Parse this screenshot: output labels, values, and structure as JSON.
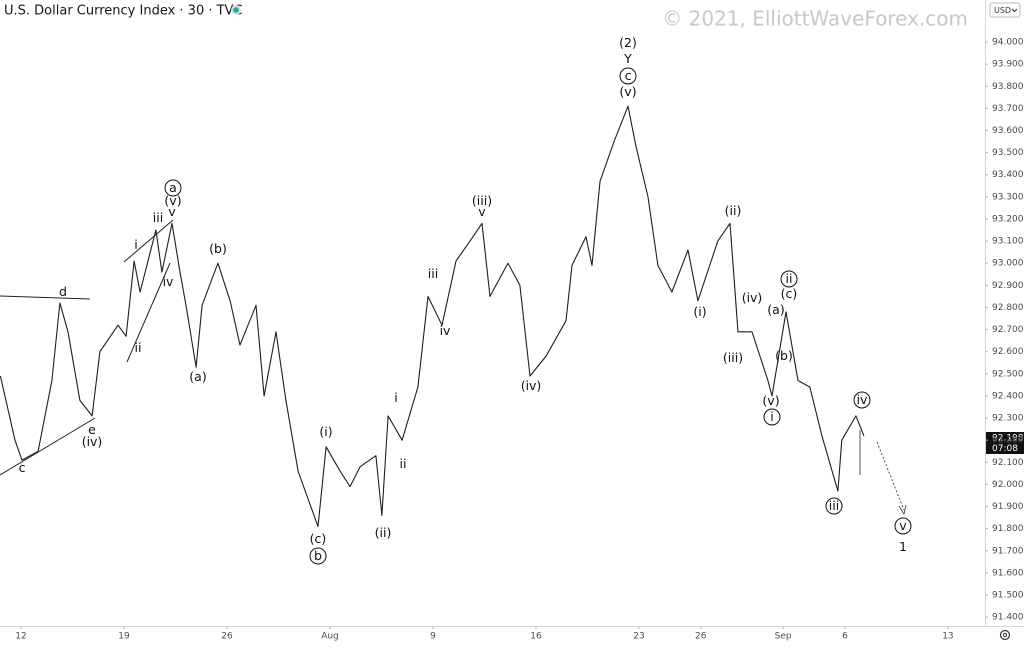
{
  "chart_data": {
    "type": "line",
    "title": "U.S. Dollar Currency Index · 30 · TVC",
    "watermark": "© 2021, ElliottWaveForex.com",
    "currency": "USD",
    "last_price_label": "92.198",
    "countdown": "07:08",
    "x": [
      -1.0,
      -0.29,
      0.05,
      0.83,
      1.5,
      1.89,
      2.28,
      2.86,
      3.45,
      3.83,
      4.71,
      5.1,
      5.49,
      5.78,
      6.55,
      6.84,
      7.33,
      7.72,
      8.01,
      8.5,
      8.79,
      9.56,
      10.15,
      10.63,
      11.41,
      11.8,
      12.38,
      12.86,
      13.45,
      14.42,
      14.81,
      15.49,
      15.97,
      16.46,
      17.23,
      17.52,
      17.82,
      18.5,
      19.27,
      19.76,
      20.44,
      21.12,
      21.8,
      22.38,
      22.77,
      23.64,
      24.22,
      24.71,
      25.49,
      26.46,
      26.75,
      27.43,
      27.72,
      28.11,
      28.79,
      29.47,
      29.85,
      30.44,
      30.92,
      31.6,
      32.38,
      32.86,
      33.83,
      34.42,
      34.81,
      35.49,
      36.26,
      36.46,
      37.14,
      37.72,
      38.3,
      38.88,
      39.66,
      39.85,
      40.53,
      40.92
    ],
    "series": [
      {
        "name": "DXY",
        "color": "#1e1e1e",
        "values": [
          92.49,
          92.2,
          92.11,
          92.15,
          92.47,
          92.82,
          92.69,
          92.38,
          92.31,
          92.6,
          92.72,
          92.67,
          93.01,
          92.87,
          93.15,
          92.96,
          93.18,
          92.96,
          92.81,
          92.53,
          92.81,
          93.0,
          92.83,
          92.63,
          92.81,
          92.4,
          92.69,
          92.38,
          92.06,
          91.81,
          92.17,
          92.06,
          91.99,
          92.08,
          92.13,
          91.86,
          92.31,
          92.2,
          92.44,
          92.85,
          92.72,
          93.01,
          93.1,
          93.18,
          92.85,
          93.0,
          92.9,
          92.49,
          92.58,
          92.74,
          92.99,
          93.12,
          92.99,
          93.37,
          93.55,
          93.71,
          93.53,
          93.3,
          92.99,
          92.87,
          93.06,
          92.83,
          93.1,
          93.18,
          92.69,
          92.69,
          92.47,
          92.4,
          92.78,
          92.47,
          92.44,
          92.22,
          91.97,
          92.2,
          92.31,
          92.22
        ]
      }
    ],
    "xlim": [
      -1.02,
      46.8
    ],
    "xticks": [
      {
        "value": 0,
        "label": "12"
      },
      {
        "value": 5,
        "label": "19"
      },
      {
        "value": 10,
        "label": "26"
      },
      {
        "value": 15,
        "label": "Aug"
      },
      {
        "value": 20,
        "label": "9"
      },
      {
        "value": 25,
        "label": "16"
      },
      {
        "value": 30,
        "label": "23"
      },
      {
        "value": 33,
        "label": "26"
      },
      {
        "value": 37,
        "label": "Sep"
      },
      {
        "value": 40,
        "label": "6"
      },
      {
        "value": 45,
        "label": "13"
      }
    ],
    "ylim": [
      91.36,
      94.19
    ],
    "yticks": [
      {
        "value": 91.4,
        "label": "91.400"
      },
      {
        "value": 91.5,
        "label": "91.500"
      },
      {
        "value": 91.6,
        "label": "91.600"
      },
      {
        "value": 91.7,
        "label": "91.700"
      },
      {
        "value": 91.8,
        "label": "91.800"
      },
      {
        "value": 91.9,
        "label": "91.900"
      },
      {
        "value": 92.0,
        "label": "92.000"
      },
      {
        "value": 92.1,
        "label": "92.100"
      },
      {
        "value": 92.2,
        "label": "92.200"
      },
      {
        "value": 92.3,
        "label": "92.300"
      },
      {
        "value": 92.4,
        "label": "92.400"
      },
      {
        "value": 92.5,
        "label": "92.500"
      },
      {
        "value": 92.6,
        "label": "92.600"
      },
      {
        "value": 92.7,
        "label": "92.700"
      },
      {
        "value": 92.8,
        "label": "92.800"
      },
      {
        "value": 92.9,
        "label": "92.900"
      },
      {
        "value": 93.0,
        "label": "93.000"
      },
      {
        "value": 93.1,
        "label": "93.100"
      },
      {
        "value": 93.2,
        "label": "93.200"
      },
      {
        "value": 93.3,
        "label": "93.300"
      },
      {
        "value": 93.4,
        "label": "93.400"
      },
      {
        "value": 93.5,
        "label": "93.500"
      },
      {
        "value": 93.6,
        "label": "93.600"
      },
      {
        "value": 93.7,
        "label": "93.700"
      },
      {
        "value": 93.8,
        "label": "93.800"
      },
      {
        "value": 93.9,
        "label": "93.900"
      },
      {
        "value": 94.0,
        "label": "94.000"
      }
    ],
    "grid": false,
    "annotations": [
      {
        "text": "d",
        "circled": false
      },
      {
        "text": "c",
        "circled": false
      },
      {
        "text": "e",
        "circled": false
      },
      {
        "text": "(iv)",
        "circled": false
      },
      {
        "text": "i",
        "circled": false
      },
      {
        "text": "iii",
        "circled": false
      },
      {
        "text": "ii",
        "circled": false
      },
      {
        "text": "iv",
        "circled": false
      },
      {
        "text": "v",
        "circled": false
      },
      {
        "text": "(v)",
        "circled": false
      },
      {
        "text": "a",
        "circled": true
      },
      {
        "text": "(b)",
        "circled": false
      },
      {
        "text": "(a)",
        "circled": false
      },
      {
        "text": "(i)",
        "circled": false
      },
      {
        "text": "(c)",
        "circled": false
      },
      {
        "text": "b",
        "circled": true
      },
      {
        "text": "(ii)",
        "circled": false
      },
      {
        "text": "i",
        "circled": false
      },
      {
        "text": "ii",
        "circled": false
      },
      {
        "text": "iii",
        "circled": false
      },
      {
        "text": "iv",
        "circled": false
      },
      {
        "text": "(iii)",
        "circled": false
      },
      {
        "text": "v",
        "circled": false
      },
      {
        "text": "(iv)",
        "circled": false
      },
      {
        "text": "(2)",
        "circled": false
      },
      {
        "text": "Y",
        "circled": false
      },
      {
        "text": "c",
        "circled": true
      },
      {
        "text": "(v)",
        "circled": false
      },
      {
        "text": "(ii)",
        "circled": false
      },
      {
        "text": "(i)",
        "circled": false
      },
      {
        "text": "(iv)",
        "circled": false
      },
      {
        "text": "(iii)",
        "circled": false
      },
      {
        "text": "(a)",
        "circled": false
      },
      {
        "text": "ii",
        "circled": true
      },
      {
        "text": "(c)",
        "circled": false
      },
      {
        "text": "(b)",
        "circled": false
      },
      {
        "text": "(v)",
        "circled": false
      },
      {
        "text": "i",
        "circled": true
      },
      {
        "text": "iii",
        "circled": true
      },
      {
        "text": "iv",
        "circled": true
      },
      {
        "text": "v",
        "circled": true
      },
      {
        "text": "1",
        "circled": false
      }
    ]
  }
}
